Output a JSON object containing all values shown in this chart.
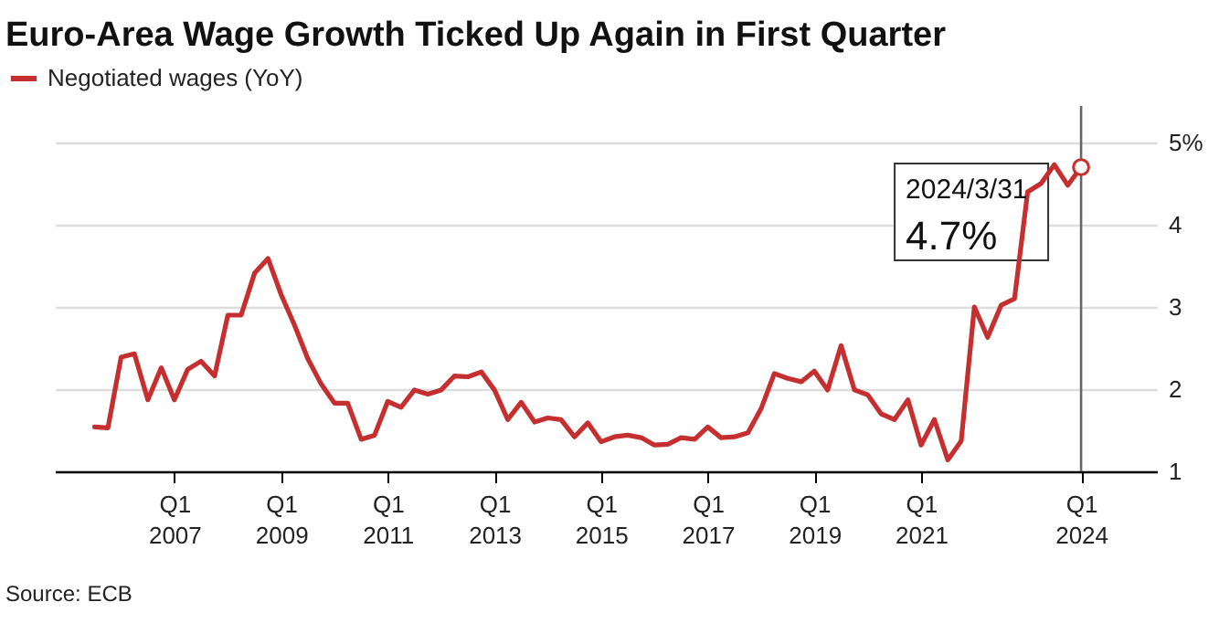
{
  "chart_data": {
    "type": "line",
    "title": "Euro-Area Wage Growth Ticked Up Again in First Quarter",
    "x": [
      "2005-09-30",
      "2005-12-31",
      "2006-03-31",
      "2006-06-30",
      "2006-09-30",
      "2006-12-31",
      "2007-03-31",
      "2007-06-30",
      "2007-09-30",
      "2007-12-31",
      "2008-03-31",
      "2008-06-30",
      "2008-09-30",
      "2008-12-31",
      "2009-03-31",
      "2009-06-30",
      "2009-09-30",
      "2009-12-31",
      "2010-03-31",
      "2010-06-30",
      "2010-09-30",
      "2010-12-31",
      "2011-03-31",
      "2011-06-30",
      "2011-09-30",
      "2011-12-31",
      "2012-03-31",
      "2012-06-30",
      "2012-09-30",
      "2012-12-31",
      "2013-03-31",
      "2013-06-30",
      "2013-09-30",
      "2013-12-31",
      "2014-03-31",
      "2014-06-30",
      "2014-09-30",
      "2014-12-31",
      "2015-03-31",
      "2015-06-30",
      "2015-09-30",
      "2015-12-31",
      "2016-03-31",
      "2016-06-30",
      "2016-09-30",
      "2016-12-31",
      "2017-03-31",
      "2017-06-30",
      "2017-09-30",
      "2017-12-31",
      "2018-03-31",
      "2018-06-30",
      "2018-09-30",
      "2018-12-31",
      "2019-03-31",
      "2019-06-30",
      "2019-09-30",
      "2019-12-31",
      "2020-03-31",
      "2020-06-30",
      "2020-09-30",
      "2020-12-31",
      "2021-03-31",
      "2021-06-30",
      "2021-09-30",
      "2021-12-31",
      "2022-03-31",
      "2022-06-30",
      "2022-09-30",
      "2022-12-31",
      "2023-03-31",
      "2023-06-30",
      "2023-09-30",
      "2023-12-31",
      "2024-03-31"
    ],
    "series": [
      {
        "name": "Negotiated wages (YoY)",
        "color": "#c62f2f",
        "values": [
          1.54,
          1.53,
          2.39,
          2.43,
          1.87,
          2.26,
          1.87,
          2.24,
          2.34,
          2.16,
          2.9,
          2.9,
          3.41,
          3.59,
          3.15,
          2.78,
          2.37,
          2.06,
          1.83,
          1.83,
          1.39,
          1.44,
          1.85,
          1.78,
          1.99,
          1.94,
          1.99,
          2.16,
          2.15,
          2.21,
          1.99,
          1.63,
          1.84,
          1.6,
          1.65,
          1.63,
          1.42,
          1.59,
          1.36,
          1.42,
          1.44,
          1.41,
          1.32,
          1.33,
          1.41,
          1.39,
          1.54,
          1.41,
          1.42,
          1.47,
          1.76,
          2.19,
          2.13,
          2.09,
          2.22,
          1.99,
          2.53,
          1.99,
          1.93,
          1.7,
          1.63,
          1.87,
          1.32,
          1.63,
          1.14,
          1.37,
          3.0,
          2.63,
          3.02,
          3.1,
          4.4,
          4.5,
          4.73,
          4.48,
          4.7
        ]
      }
    ],
    "xlim": [
      "2005-01-01",
      "2025-09-01"
    ],
    "xticks": [
      {
        "value": "2007-03-31",
        "label": "Q1 2007"
      },
      {
        "value": "2009-03-31",
        "label": "Q1 2009"
      },
      {
        "value": "2011-03-31",
        "label": "Q1 2011"
      },
      {
        "value": "2013-03-31",
        "label": "Q1 2013"
      },
      {
        "value": "2015-03-31",
        "label": "Q1 2015"
      },
      {
        "value": "2017-03-31",
        "label": "Q1 2017"
      },
      {
        "value": "2019-03-31",
        "label": "Q1 2019"
      },
      {
        "value": "2021-03-31",
        "label": "Q1 2021"
      },
      {
        "value": "2024-03-31",
        "label": "Q1 2024"
      }
    ],
    "ylim": [
      1,
      5
    ],
    "yticks": [
      1,
      2,
      3,
      4,
      {
        "value": 5,
        "label": "5%"
      }
    ],
    "grid": "y",
    "legend": "top left",
    "marker": "none",
    "line_style": "solid",
    "ref_lines": [
      {
        "axis": "x",
        "value": "2024-03-31",
        "color": "#666666"
      }
    ],
    "annotations": [
      {
        "text": "2024/3/31",
        "x": "2024-03-31",
        "y": 4.7
      },
      {
        "text": "4.7%",
        "x": "2024-03-31",
        "y": 4.7
      },
      "Source: ECB"
    ]
  }
}
